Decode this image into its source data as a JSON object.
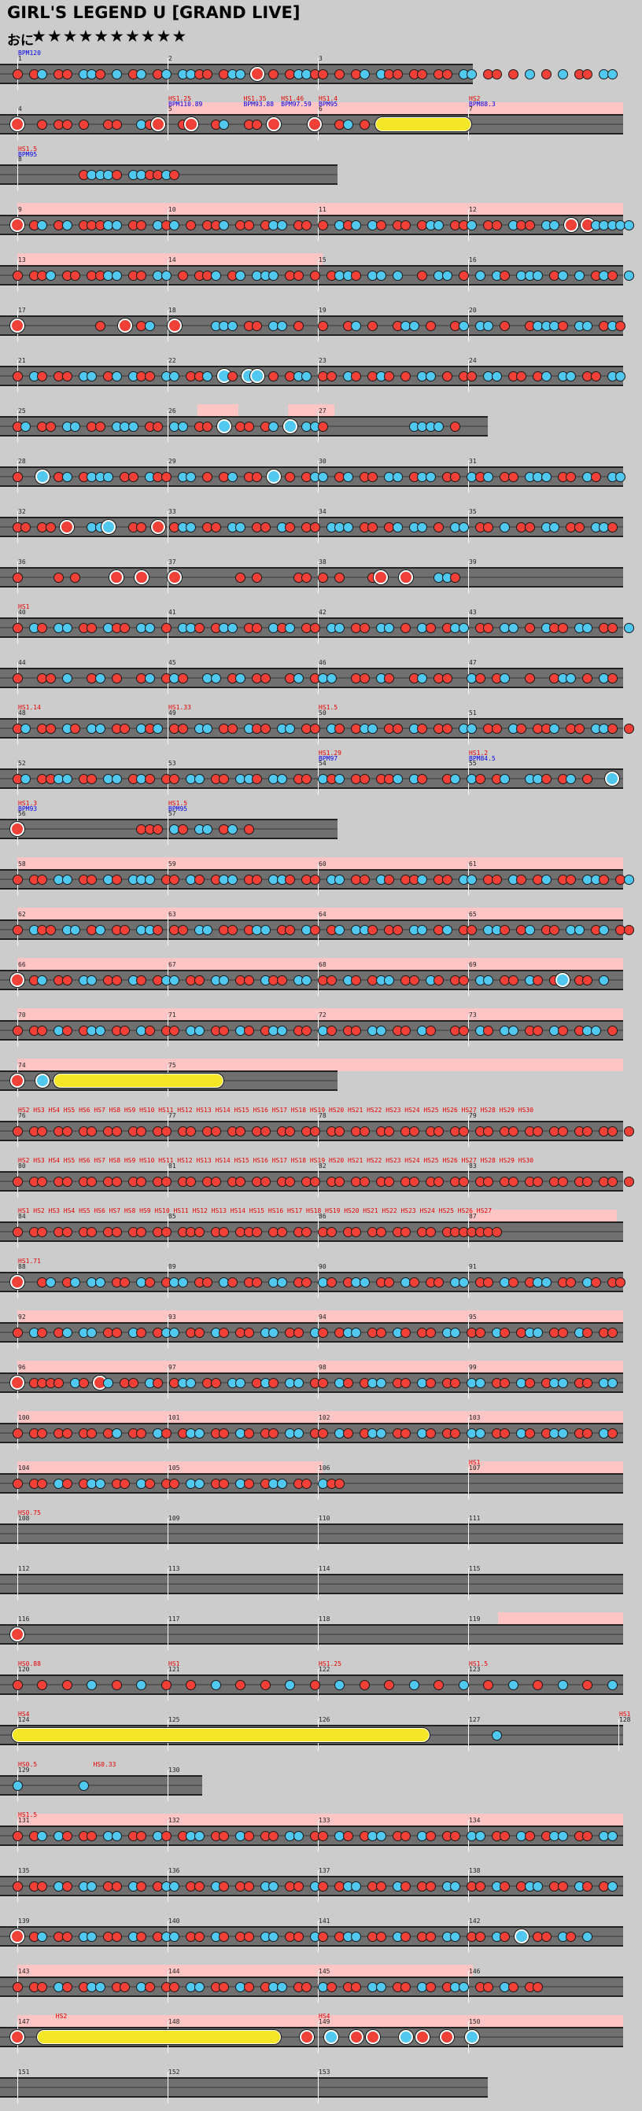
{
  "header": {
    "title": "GIRL'S LEGEND U [GRAND LIVE]",
    "difficulty_label": "おに",
    "stars": "★★★★★★★★★★"
  },
  "colors": {
    "background": "#cccccc",
    "lane": "#707070",
    "gogo": "#ffc4c4",
    "don": "#f04038",
    "ka": "#50c8f0",
    "drumroll": "#f5e628",
    "event_red": "#e40000",
    "event_blue": "#0000e8"
  },
  "chart_data": {
    "type": "drum-score",
    "measures_per_row": 4,
    "total_measures": 153,
    "note_legend": {
      "d": "don",
      "k": "ka",
      "D": "big-don",
      "K": "big-ka",
      "R": "drumroll",
      "B": "balloon",
      ".": "rest"
    },
    "rows": [
      {
        "measures": [
          1,
          2,
          3
        ],
        "span": 3,
        "pink": [],
        "labels": [
          {
            "m": 1,
            "color": "blue",
            "lines": [
              "BPM120"
            ]
          }
        ],
        "pattern": "d.dk.dd.kkd.k.dk.dk.kkdd.dkk.D.d.dkkdd.d.dk.kdd.dd.dd.kk.dd.d.k.d.k.dd.kk"
      },
      {
        "measures": [
          4,
          5,
          6,
          7
        ],
        "span": 4,
        "pink": [
          [
            0.25,
            1.0
          ]
        ],
        "labels": [
          {
            "m": 5,
            "color": "red",
            "lines": [
              "HS1.25",
              "BPM110.89"
            ]
          },
          {
            "m": 5.5,
            "color": "red",
            "lines": [
              "HS1.35",
              "BPM93.88"
            ]
          },
          {
            "m": 5.75,
            "color": "red",
            "lines": [
              "HS1.46",
              "BPM97.59"
            ]
          },
          {
            "m": 6,
            "color": "red",
            "lines": [
              "HS1.4",
              "BPM95"
            ]
          },
          {
            "m": 7,
            "color": "red",
            "lines": [
              "HS2",
              "BPM88.3"
            ]
          }
        ],
        "pattern": "D..d.dd.d..dd..kdD..dD..dk..dd.D....D..dk.d.RRRRRRRRRRR.."
      },
      {
        "measures": [
          8
        ],
        "span": 2.1,
        "pink": [],
        "labels": [
          {
            "m": 8,
            "color": "red",
            "lines": [
              "HS1.5",
              "BPM95"
            ]
          }
        ],
        "pattern": "........dkkkd.kkddkd"
      },
      {
        "measures": [
          9,
          10,
          11,
          12
        ],
        "span": 4,
        "pink": [
          [
            0,
            1.0
          ]
        ],
        "labels": [],
        "pattern": "D.dk.dk.dddkk.dd.kdk.d.ddk.dd.dkk.dd.d.kdk.kd.dd.dkk.ddk.dd.kdd.kk.D.Dkkkkk"
      },
      {
        "measures": [
          13,
          14,
          15,
          16
        ],
        "span": 4,
        "pink": [
          [
            0,
            0.5
          ]
        ],
        "labels": [],
        "pattern": "d.ddk.dd.ddkk.dd.kk.d.ddk.dk.kkk.dd.d.dkkd.kk.k..d.kk.d.k.kd.kkk.dk.k.dkd.k.dK"
      },
      {
        "measures": [
          17,
          18,
          19,
          20
        ],
        "span": 4,
        "pink": [],
        "labels": [],
        "pattern": "D.........d..D.dk..D....kkk.dd.kk.d..d..dk.d..dkk.d..dk.kk.d..dkkkd.kk.dkd"
      },
      {
        "measures": [
          21,
          22,
          23,
          24
        ],
        "span": 4,
        "pink": [],
        "labels": [],
        "pattern": "d.kd.dd.kk.dk.kdd.kk.ddk.Kd.KK.d.dkk.dd.kd.dkd.d.kk.d.dd.kk.dd.dk.kk.dd.kk.d"
      },
      {
        "measures": [
          25,
          26,
          27
        ],
        "span": 3.1,
        "pink": [
          [
            0.3,
            0.36
          ],
          [
            0.45,
            0.52
          ]
        ],
        "labels": [],
        "pattern": "dk.dd.kk.dd.kkk.dd.kk.dd.K.dd.dk.K.kkd..........kkkk.d"
      },
      {
        "measures": [
          28,
          29,
          30,
          31
        ],
        "span": 4,
        "pink": [],
        "labels": [],
        "pattern": "d..K.dk.dkkk.dd.kdd.kk.d.dk.dd.K.d.dkk.dk.dd.kk.dkk.dd.kdk.dd.kkk.dd.kd.kk"
      },
      {
        "measures": [
          32,
          33,
          34,
          35
        ],
        "span": 4,
        "pink": [],
        "labels": [],
        "pattern": "dd.dd.D..kkK..dd.D.dkk.dd.kk.dd.kd.dd.kkk.dd.dk.kk.d.kk.dd.k.dd.kk.dd.kkd"
      },
      {
        "measures": [
          36,
          37,
          38,
          39
        ],
        "span": 4,
        "pink": [],
        "labels": [],
        "pattern": "d....d.d....D..D...D.......d.d....dd.d.d...dD..D...kkd"
      },
      {
        "measures": [
          40,
          41,
          42,
          43
        ],
        "span": 4,
        "pink": [],
        "labels": [
          {
            "m": 40,
            "color": "red",
            "lines": [
              "HS1"
            ]
          }
        ],
        "pattern": "d.kd.kk.dd.kdd.kk.d.kkd.dkk.dd.kdk.dd.kk.dd.kk.d.kd.dkk.dd.kk.d.kdd.kk.dd.kd"
      },
      {
        "measures": [
          44,
          45,
          46,
          47
        ],
        "span": 4,
        "pink": [],
        "labels": [],
        "pattern": "d..dd.k..dk.d..dk.dkd..kk.dk.dd..dk.dkk..dd.kd..dk.dd..kd.dk..d..dkk.d.kd"
      },
      {
        "measures": [
          48,
          49,
          50,
          51
        ],
        "span": 4,
        "pink": [],
        "labels": [
          {
            "m": 48,
            "color": "red",
            "lines": [
              "HS1.14"
            ]
          },
          {
            "m": 49,
            "color": "red",
            "lines": [
              "HS1.33"
            ]
          },
          {
            "m": 50,
            "color": "red",
            "lines": [
              "HS1.5"
            ]
          }
        ],
        "pattern": "dk.dd.kd.kk.dd.kdk.dd.kk.dd.kdd.kk.dd.kd.dkk.dd.kd.dd.kk.dd.kd.ddk.dd.kkd.dd"
      },
      {
        "measures": [
          52,
          53,
          54,
          55
        ],
        "span": 4,
        "pink": [],
        "labels": [
          {
            "m": 54,
            "color": "red",
            "lines": [
              "HS1.29",
              "BPM97"
            ]
          },
          {
            "m": 55,
            "color": "red",
            "lines": [
              "HS1.2",
              "BPM84.5"
            ]
          }
        ],
        "pattern": "dk.ddkk.dd.kk.dkd.dd.kk.dd.kkd.kk.dd.kdk.dd.ddk.kd..dk.kd.dk..kkd.dk.d..K"
      },
      {
        "measures": [
          56,
          57
        ],
        "span": 2.1,
        "pink": [],
        "labels": [
          {
            "m": 56,
            "color": "red",
            "lines": [
              "HS1.3",
              "BPM93"
            ]
          },
          {
            "m": 57,
            "color": "red",
            "lines": [
              "HS1.5",
              "BPM95"
            ]
          }
        ],
        "pattern": "D..............ddd.kd.kk.dk.d"
      },
      {
        "measures": [
          58,
          59,
          60,
          61
        ],
        "span": 4,
        "pink": [
          [
            0,
            1.0
          ]
        ],
        "labels": [],
        "pattern": "d.dd.kk.dd.kd.kkk.dd.kd.dkk.dd.kkd.dd.kk.dd.kd.ddk.dd.kk.dd.kd.dk.dd.kkd.dk"
      },
      {
        "measures": [
          62,
          63,
          64,
          65
        ],
        "span": 4,
        "pink": [
          [
            0,
            1.0
          ]
        ],
        "labels": [],
        "pattern": "d.kdd.kk.dk.dd.kkd.dd.kk.dd.dkk.dd.kd.dk.kkd.dd.kk.dk.dd.kkd.dk.dd.kk.dk.dd"
      },
      {
        "measures": [
          66,
          67,
          68,
          69
        ],
        "span": 4,
        "pink": [
          [
            0,
            1.0
          ]
        ],
        "labels": [],
        "pattern": "D.dk.dd.kk.dd.kd.dkk.dd.kk.dd.kdd.kk.dd.kd.dkk.dd.kd.dd.kk.dd.kd.dK.dd.k"
      },
      {
        "measures": [
          70,
          71,
          72,
          73
        ],
        "span": 4,
        "pink": [
          [
            0,
            1.0
          ]
        ],
        "labels": [],
        "pattern": "d.dd.kd.dkk.dd.kd.dd.kk.dd.kd.dkk.dd.kd.dd.kk.dd.kd..dd.kd.kk.dd.kd.dkk.d"
      },
      {
        "measures": [
          74,
          75
        ],
        "span": 2.1,
        "pink": [
          [
            0,
            1.0
          ]
        ],
        "labels": [],
        "pattern": "D..K.RRRRRRRRRRRRRRRRRRRR......"
      },
      {
        "measures": [
          76,
          77,
          78,
          79
        ],
        "span": 4,
        "pink": [],
        "labels": [
          {
            "m": 76,
            "color": "red",
            "lines": [
              "HS2 HS3 HS4 HS5 HS6 HS7 HS8 HS9 HS10 HS11 HS12 HS13 HS14 HS15 HS16 HS17 HS18 HS19 HS20 HS21 HS22 HS23 HS24 HS25 HS26 HS27 HS28 HS29 HS30"
            ]
          }
        ],
        "pattern": "d.dd.dd.dd.dd.dd.dd.dd.dd.dd.dd.dd.dd.dd.dd.dd.dd.dd.dd.dd.dd.dd.dd.dd.dd.dd.d"
      },
      {
        "measures": [
          80,
          81,
          82,
          83
        ],
        "span": 4,
        "pink": [],
        "labels": [
          {
            "m": 80,
            "color": "red",
            "lines": [
              "HS2 HS3 HS4 HS5 HS6 HS7 HS8 HS9 HS10 HS11 HS12 HS13 HS14 HS15 HS16 HS17 HS18 HS19 HS20 HS21 HS22 HS23 HS24 HS25 HS26 HS27 HS28 HS29 HS30"
            ]
          }
        ],
        "pattern": "d.dd.dd.dd.dd.dd.dd.dd.dd.dd.dd.dd.dd.dd.dd.dd.dd.dd.dd.dd.dd.dd.dd.dd.dd.dd.d"
      },
      {
        "measures": [
          84,
          85,
          86,
          87
        ],
        "span": 4,
        "pink": [
          [
            0.75,
            0.99
          ]
        ],
        "labels": [
          {
            "m": 84,
            "color": "red",
            "lines": [
              "HS1 HS2 HS3 HS4 HS5 HS6 HS7 HS8 HS9 HS10 HS11 HS12 HS13 HS14 HS15 HS16 HS17 HS18 HS19 HS20 HS21 HS22 HS23 HS24 HS25 HS26 HS27"
            ]
          }
        ],
        "pattern": "d.dd.dd.dd.dd.dd.dd.ddd.dd.ddd.dd.dd.dd.dd.dd.dd.dd.ddddddd......................"
      },
      {
        "measures": [
          88,
          89,
          90,
          91
        ],
        "span": 4,
        "pink": [],
        "labels": [
          {
            "m": 88,
            "color": "red",
            "lines": [
              "HS1.71"
            ]
          }
        ],
        "pattern": "D..dk.dk.kk.dd.kd.dkk.dd.kd.dd.kk.dd.kd.dkk.dd.kd.dd.kk.dd.kd.dkk.dd.kd.dd"
      },
      {
        "measures": [
          92,
          93,
          94,
          95
        ],
        "span": 4,
        "pink": [
          [
            0,
            1.0
          ]
        ],
        "labels": [],
        "pattern": "d.kd.dk.kk.dd.kd.dkk.dd.kd.dd.kk.dd.kd.dkk.dd.kd.dd.kk.dd.kd.dkk.dd.kd.dd"
      },
      {
        "measures": [
          96,
          97,
          98,
          99
        ],
        "span": 4,
        "pink": [
          [
            0,
            1.0
          ]
        ],
        "labels": [],
        "pattern": "D.dddd.kd.Dk.dd.kd.dkk.dd.kk.dkd.kk.dd.kd.dkk.dd.kd.dd.kk.dd.kd.dkk.dd.kk"
      },
      {
        "measures": [
          100,
          101,
          102,
          103
        ],
        "span": 4,
        "pink": [
          [
            0,
            1.0
          ]
        ],
        "labels": [],
        "pattern": "d.dd.dd.dd.dk.dd.kd.dkk.dd.kd.dd.kk.dd.kd.dkk.dd.kd.dd.kk.dd.kd.dkk.dd.kd"
      },
      {
        "measures": [
          104,
          105,
          106,
          107
        ],
        "span": 4,
        "pink": [
          [
            0,
            0.5
          ],
          [
            0.75,
            1.0
          ]
        ],
        "labels": [
          {
            "m": 107,
            "color": "red",
            "lines": [
              "HS1"
            ]
          }
        ],
        "pattern": "d.dd.kd.dkk.dd.kd.dd.kk.dd.kd.dkk.dd.kdd..........................."
      },
      {
        "measures": [
          108,
          109,
          110,
          111
        ],
        "span": 4,
        "pink": [],
        "labels": [
          {
            "m": 108,
            "color": "red",
            "lines": [
              "HS0.75"
            ]
          }
        ],
        "pattern": ""
      },
      {
        "measures": [
          112,
          113,
          114,
          115
        ],
        "span": 4,
        "pink": [],
        "labels": [],
        "pattern": ""
      },
      {
        "measures": [
          116,
          117,
          118,
          119
        ],
        "span": 4,
        "pink": [
          [
            0.8,
            1.0
          ]
        ],
        "labels": [],
        "pattern": "D"
      },
      {
        "measures": [
          120,
          121,
          122,
          123
        ],
        "span": 4,
        "pink": [],
        "labels": [
          {
            "m": 120,
            "color": "red",
            "lines": [
              "HS0.88"
            ]
          },
          {
            "m": 121,
            "color": "red",
            "lines": [
              "HS1"
            ]
          },
          {
            "m": 122,
            "color": "red",
            "lines": [
              "HS1.25"
            ]
          },
          {
            "m": 123,
            "color": "red",
            "lines": [
              "HS1.5"
            ]
          }
        ],
        "pattern": "d..d..d..k..d..k..d..d..k..d..d..k..d..k..d..d..k..d..k..d..k..d..k..d..k..d"
      },
      {
        "measures": [
          124,
          125,
          126,
          127,
          128
        ],
        "span": 4,
        "pink": [],
        "labels": [
          {
            "m": 124,
            "color": "red",
            "lines": [
              "HS4"
            ]
          },
          {
            "m": 128,
            "color": "red",
            "lines": [
              "HS1"
            ]
          }
        ],
        "pattern": "RRRRRRRRRRRRRRRRRRRRRRRRRRRRRRRRRRRRRRRRRRRRRRRRRR........k.."
      },
      {
        "measures": [
          129,
          130
        ],
        "span": 1.2,
        "pink": [],
        "labels": [
          {
            "m": 129,
            "color": "red",
            "lines": [
              "HS0.5"
            ]
          },
          {
            "m": 129.5,
            "color": "red",
            "lines": [
              "HS0.33"
            ]
          }
        ],
        "pattern": "k.......k......"
      },
      {
        "measures": [
          131,
          132,
          133,
          134
        ],
        "span": 4,
        "pink": [
          [
            0,
            1.0
          ]
        ],
        "labels": [
          {
            "m": 131,
            "color": "red",
            "lines": [
              "HS1.5"
            ]
          }
        ],
        "pattern": "d.dk.kd.dd.kk.dd.kd.dkk.dd.kd.dd.kk.dd.kd.dkk.dd.kd.dd.kk.dd.kd.dkk.dd.kk"
      },
      {
        "measures": [
          135,
          136,
          137,
          138
        ],
        "span": 4,
        "pink": [],
        "labels": [],
        "pattern": "d.dd.kd.kk.dd.kd.dkk.dd.kd.dd.kk.dd.kd.dkk.dd.kd.dd.kk.dd.kd.dkk.dd.kd.dk"
      },
      {
        "measures": [
          139,
          140,
          141,
          142
        ],
        "span": 4,
        "pink": [],
        "labels": [],
        "pattern": "D.dk.dd.kk.dd.kd.dkk.dd.kd.dd.kk.dd.kd.dkk.dd.kd.dd.kk.dd.kd.K.dd.kd.k"
      },
      {
        "measures": [
          143,
          144,
          145,
          146
        ],
        "span": 4,
        "pink": [
          [
            0,
            0.75
          ]
        ],
        "labels": [],
        "pattern": "d.dd.kd.dkk.dd.kd.dd.kk.dd.kd.dkk.dd.kd.dd.kk.dd.kd.dkk.dd.kd.dd......."
      },
      {
        "measures": [
          147,
          148,
          149,
          150
        ],
        "span": 4,
        "pink": [
          [
            0,
            1.0
          ]
        ],
        "labels": [
          {
            "m": 147.25,
            "color": "red",
            "lines": [
              "HS2"
            ]
          },
          {
            "m": 149,
            "color": "red",
            "lines": [
              "HS4"
            ]
          }
        ],
        "pattern": "D..RRRRRRRRRRRRRRRRRRRRRRRRRRRRR...D..K..D.D...K.D..D..K.."
      },
      {
        "measures": [
          151,
          152,
          153
        ],
        "span": 3.1,
        "pink": [],
        "labels": [],
        "pattern": ""
      }
    ]
  }
}
